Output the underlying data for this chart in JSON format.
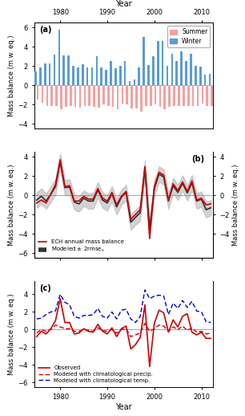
{
  "years": [
    1975,
    1976,
    1977,
    1978,
    1979,
    1980,
    1981,
    1982,
    1983,
    1984,
    1985,
    1986,
    1987,
    1988,
    1989,
    1990,
    1991,
    1992,
    1993,
    1994,
    1995,
    1996,
    1997,
    1998,
    1999,
    2000,
    2001,
    2002,
    2003,
    2004,
    2005,
    2006,
    2007,
    2008,
    2009,
    2010,
    2011,
    2012
  ],
  "winter": [
    1.45,
    1.9,
    2.3,
    2.3,
    3.2,
    5.8,
    3.1,
    3.1,
    2.0,
    1.9,
    2.2,
    1.9,
    1.9,
    3.0,
    1.85,
    1.65,
    2.5,
    1.75,
    2.05,
    2.55,
    0.45,
    0.65,
    1.85,
    5.0,
    2.1,
    3.0,
    4.6,
    4.6,
    2.05,
    3.3,
    2.55,
    3.5,
    2.5,
    3.25,
    2.0,
    1.95,
    1.1,
    1.2
  ],
  "summer": [
    -1.5,
    -1.8,
    -2.1,
    -2.1,
    -2.1,
    -2.5,
    -2.2,
    -2.1,
    -2.2,
    -2.3,
    -2.1,
    -2.1,
    -2.2,
    -2.3,
    -2.0,
    -2.1,
    -2.2,
    -2.5,
    -1.9,
    -2.0,
    -2.4,
    -2.4,
    -2.7,
    -2.1,
    -2.1,
    -2.0,
    -2.2,
    -2.5,
    -2.2,
    -2.1,
    -2.1,
    -2.1,
    -2.1,
    -2.1,
    -2.1,
    -1.9,
    -2.1,
    -2.1
  ],
  "annual_ecm": [
    -0.8,
    -0.5,
    -0.8,
    0.1,
    1.1,
    3.7,
    0.9,
    1.0,
    -0.6,
    -0.6,
    -0.1,
    -0.4,
    -0.4,
    0.7,
    -0.3,
    -0.6,
    0.3,
    -1.0,
    -0.1,
    0.4,
    -2.5,
    -2.0,
    -1.5,
    3.0,
    -4.5,
    0.9,
    2.4,
    2.1,
    -0.5,
    1.2,
    0.5,
    1.4,
    0.4,
    1.5,
    -0.5,
    -0.3,
    -1.0,
    -0.9
  ],
  "modeled_b": [
    -0.5,
    -0.1,
    -0.6,
    0.1,
    0.9,
    3.5,
    0.8,
    0.85,
    -0.7,
    -0.9,
    -0.3,
    -0.6,
    -0.6,
    0.55,
    -0.5,
    -0.8,
    0.15,
    -1.2,
    -0.2,
    0.3,
    -2.8,
    -2.3,
    -1.8,
    2.8,
    -3.5,
    0.7,
    2.2,
    1.9,
    -0.6,
    1.0,
    0.3,
    1.25,
    0.25,
    1.3,
    -0.6,
    -0.4,
    -1.5,
    -1.3
  ],
  "modeled_upper": [
    0.3,
    0.7,
    0.2,
    0.9,
    1.7,
    4.3,
    1.6,
    1.65,
    0.1,
    -0.1,
    0.5,
    0.2,
    0.2,
    1.35,
    0.3,
    0.0,
    0.95,
    -0.4,
    0.6,
    1.1,
    -2.0,
    -1.5,
    -1.0,
    3.6,
    -2.7,
    1.5,
    3.0,
    2.7,
    0.2,
    1.8,
    1.1,
    2.05,
    1.05,
    2.1,
    0.2,
    0.4,
    -0.7,
    -0.5
  ],
  "modeled_lower": [
    -1.3,
    -0.9,
    -1.4,
    -0.7,
    0.1,
    2.7,
    0.0,
    0.05,
    -1.5,
    -1.7,
    -1.1,
    -1.4,
    -1.4,
    -0.25,
    -1.3,
    -1.6,
    -0.65,
    -2.0,
    -1.0,
    -0.5,
    -3.6,
    -3.1,
    -2.6,
    2.0,
    -4.3,
    -0.1,
    1.4,
    1.1,
    -1.4,
    0.2,
    -0.5,
    0.45,
    -0.55,
    0.5,
    -1.4,
    -1.2,
    -2.3,
    -2.1
  ],
  "obs_c": [
    -0.8,
    -0.2,
    -0.5,
    0.1,
    1.0,
    3.5,
    0.8,
    0.8,
    -0.5,
    -0.4,
    0.1,
    -0.2,
    -0.3,
    0.6,
    -0.2,
    -0.5,
    0.2,
    -0.8,
    0.1,
    0.4,
    -2.2,
    -1.7,
    -0.9,
    2.8,
    -4.2,
    0.7,
    2.2,
    1.9,
    -0.3,
    1.1,
    0.3,
    1.5,
    1.8,
    -0.3,
    -0.6,
    -0.3,
    -1.0,
    -1.0
  ],
  "clim_precip": [
    -0.4,
    0.0,
    -0.2,
    0.0,
    0.5,
    0.3,
    0.1,
    0.1,
    -0.2,
    -0.2,
    0.0,
    -0.1,
    -0.2,
    0.2,
    -0.1,
    -0.2,
    0.0,
    -0.4,
    0.0,
    0.1,
    -0.8,
    -0.6,
    -0.4,
    0.7,
    -0.2,
    0.1,
    0.5,
    0.4,
    -0.2,
    0.3,
    0.0,
    0.4,
    -0.1,
    0.2,
    -0.3,
    -0.2,
    -0.5,
    -0.4
  ],
  "clim_temp": [
    1.2,
    1.3,
    1.7,
    2.0,
    2.1,
    4.0,
    3.1,
    2.8,
    1.5,
    1.3,
    1.6,
    1.6,
    1.7,
    2.4,
    1.5,
    1.3,
    2.0,
    1.2,
    2.2,
    2.3,
    1.2,
    0.8,
    1.5,
    4.5,
    3.5,
    3.8,
    3.9,
    3.8,
    1.7,
    3.0,
    2.4,
    3.3,
    2.5,
    3.2,
    2.1,
    2.0,
    0.9,
    0.8
  ],
  "xlim": [
    1974.5,
    2012.5
  ],
  "xticks": [
    1980,
    1990,
    2000,
    2010
  ],
  "panel_a_ylim": [
    -4.5,
    6.5
  ],
  "panel_a_yticks": [
    -4,
    -2,
    0,
    2,
    4,
    6
  ],
  "panel_b_ylim": [
    -6.5,
    4.5
  ],
  "panel_b_yticks": [
    -6,
    -4,
    -2,
    0,
    2,
    4
  ],
  "panel_b_right_yticks": [
    -4,
    -2,
    0,
    2,
    4
  ],
  "panel_c_ylim": [
    -6.5,
    5.5
  ],
  "panel_c_yticks": [
    -6,
    -4,
    -2,
    0,
    2,
    4
  ],
  "winter_color": "#5b9bd5",
  "summer_color": "#f4a0a0",
  "red_color": "#cc0000",
  "black_color": "#333333",
  "blue_dashed_color": "#0000cc",
  "red_dashed_color": "#cc0000",
  "gray_fill": "#b0b0b0",
  "title_top": "Year",
  "ylabel_a": "Mass balance (m w. eq.)",
  "ylabel_b_right": "Mass balance (m w. eq.)",
  "ylabel_c": "Mass balance (m w. eq.)"
}
